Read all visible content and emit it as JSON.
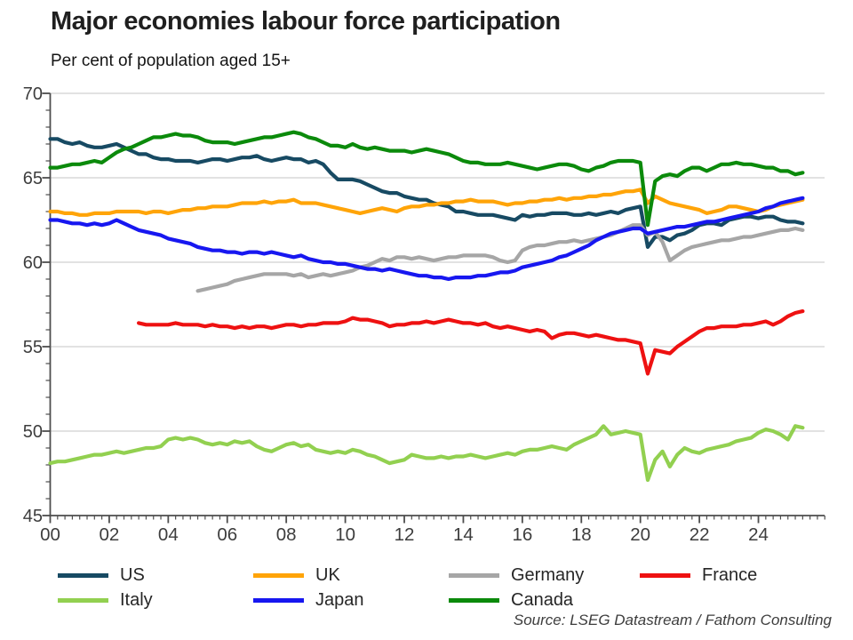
{
  "title": "Major economies labour force participation",
  "subtitle": "Per cent of population aged 15+",
  "source": "Source: LSEG Datastream / Fathom Consulting",
  "colors": {
    "background": "#ffffff",
    "gridline": "#d9d9d9",
    "axis": "#4d4d4d",
    "tick_label": "#3d3d3d",
    "title_text": "#1f1f1f"
  },
  "chart_data": {
    "type": "line",
    "title": "Major economies labour force participation",
    "subtitle": "Per cent of population aged 15+",
    "source": "Source: LSEG Datastream / Fathom Consulting",
    "grid": "horizontal",
    "legend_position": "bottom",
    "ylim": [
      45,
      70
    ],
    "y_ticks": [
      45,
      50,
      55,
      60,
      65,
      70
    ],
    "x_axis_years": [
      2000,
      2026.3
    ],
    "x_major_tick_step_years": 2,
    "x_minor_tick_step_years": 0.25,
    "x_tick_labels": [
      "00",
      "02",
      "04",
      "06",
      "08",
      "10",
      "12",
      "14",
      "16",
      "18",
      "20",
      "22",
      "24"
    ],
    "x_step": 0.25,
    "legend_rows": [
      [
        "US",
        "UK",
        "Germany",
        "France"
      ],
      [
        "Italy",
        "Japan",
        "Canada"
      ]
    ],
    "series": [
      {
        "name": "US",
        "color": "#174a63",
        "x_start": 2000,
        "values": [
          67.3,
          67.3,
          67.1,
          67.0,
          67.1,
          66.9,
          66.8,
          66.8,
          66.9,
          67.0,
          66.8,
          66.6,
          66.4,
          66.4,
          66.2,
          66.1,
          66.1,
          66.0,
          66.0,
          66.0,
          65.9,
          66.0,
          66.1,
          66.1,
          66.0,
          66.1,
          66.2,
          66.2,
          66.3,
          66.1,
          66.0,
          66.1,
          66.2,
          66.1,
          66.1,
          65.9,
          66.0,
          65.8,
          65.3,
          64.9,
          64.9,
          64.9,
          64.8,
          64.6,
          64.4,
          64.2,
          64.1,
          64.1,
          63.9,
          63.8,
          63.7,
          63.7,
          63.5,
          63.4,
          63.3,
          63.0,
          63.0,
          62.9,
          62.8,
          62.8,
          62.8,
          62.7,
          62.6,
          62.5,
          62.8,
          62.7,
          62.8,
          62.8,
          62.9,
          62.9,
          62.9,
          62.8,
          62.8,
          62.9,
          62.8,
          62.9,
          63.0,
          62.9,
          63.1,
          63.2,
          63.3,
          60.9,
          61.5,
          61.5,
          61.3,
          61.6,
          61.7,
          61.9,
          62.2,
          62.3,
          62.3,
          62.2,
          62.5,
          62.6,
          62.7,
          62.7,
          62.6,
          62.7,
          62.7,
          62.5,
          62.4,
          62.4,
          62.3
        ]
      },
      {
        "name": "UK",
        "color": "#ffa408",
        "x_start": 2000,
        "values": [
          63.0,
          63.0,
          62.9,
          62.9,
          62.8,
          62.8,
          62.9,
          62.9,
          62.9,
          63.0,
          63.0,
          63.0,
          63.0,
          62.9,
          63.0,
          63.0,
          62.9,
          63.0,
          63.1,
          63.1,
          63.2,
          63.2,
          63.3,
          63.3,
          63.3,
          63.4,
          63.5,
          63.5,
          63.5,
          63.6,
          63.5,
          63.6,
          63.6,
          63.7,
          63.5,
          63.5,
          63.5,
          63.4,
          63.3,
          63.2,
          63.1,
          63.0,
          62.9,
          63.0,
          63.1,
          63.2,
          63.1,
          63.0,
          63.2,
          63.3,
          63.3,
          63.4,
          63.4,
          63.5,
          63.5,
          63.6,
          63.6,
          63.7,
          63.6,
          63.6,
          63.6,
          63.5,
          63.4,
          63.5,
          63.5,
          63.6,
          63.6,
          63.7,
          63.7,
          63.8,
          63.7,
          63.8,
          63.8,
          63.9,
          63.9,
          64.0,
          64.0,
          64.1,
          64.2,
          64.2,
          64.3,
          63.5,
          63.9,
          63.7,
          63.5,
          63.4,
          63.3,
          63.2,
          63.1,
          62.9,
          63.0,
          63.1,
          63.3,
          63.3,
          63.2,
          63.1,
          63.0,
          63.1,
          63.3,
          63.4,
          63.5,
          63.6,
          63.7
        ]
      },
      {
        "name": "Germany",
        "color": "#a6a6a6",
        "x_start": 2005,
        "values": [
          58.3,
          58.4,
          58.5,
          58.6,
          58.7,
          58.9,
          59.0,
          59.1,
          59.2,
          59.3,
          59.3,
          59.3,
          59.3,
          59.2,
          59.3,
          59.1,
          59.2,
          59.3,
          59.2,
          59.3,
          59.4,
          59.5,
          59.7,
          59.8,
          60.0,
          60.2,
          60.1,
          60.3,
          60.3,
          60.2,
          60.3,
          60.2,
          60.1,
          60.2,
          60.3,
          60.3,
          60.4,
          60.4,
          60.4,
          60.4,
          60.3,
          60.1,
          60.0,
          60.1,
          60.7,
          60.9,
          61.0,
          61.0,
          61.1,
          61.2,
          61.2,
          61.3,
          61.2,
          61.3,
          61.4,
          61.5,
          61.6,
          61.8,
          62.0,
          62.2,
          62.2,
          61.6,
          61.8,
          61.2,
          60.1,
          60.4,
          60.7,
          60.9,
          61.0,
          61.1,
          61.2,
          61.3,
          61.3,
          61.4,
          61.5,
          61.5,
          61.6,
          61.7,
          61.8,
          61.9,
          61.9,
          62.0,
          61.9
        ]
      },
      {
        "name": "France",
        "color": "#ee1111",
        "x_start": 2003,
        "values": [
          56.4,
          56.3,
          56.3,
          56.3,
          56.3,
          56.4,
          56.3,
          56.3,
          56.3,
          56.2,
          56.3,
          56.2,
          56.2,
          56.1,
          56.2,
          56.1,
          56.2,
          56.2,
          56.1,
          56.2,
          56.3,
          56.3,
          56.2,
          56.3,
          56.3,
          56.4,
          56.4,
          56.4,
          56.5,
          56.7,
          56.6,
          56.6,
          56.5,
          56.4,
          56.2,
          56.3,
          56.3,
          56.4,
          56.4,
          56.5,
          56.4,
          56.5,
          56.6,
          56.5,
          56.4,
          56.4,
          56.3,
          56.4,
          56.2,
          56.1,
          56.2,
          56.1,
          56.0,
          55.9,
          56.0,
          55.9,
          55.5,
          55.7,
          55.8,
          55.8,
          55.7,
          55.6,
          55.7,
          55.6,
          55.5,
          55.4,
          55.4,
          55.3,
          55.2,
          53.4,
          54.8,
          54.7,
          54.6,
          55.0,
          55.3,
          55.6,
          55.9,
          56.1,
          56.1,
          56.2,
          56.2,
          56.2,
          56.3,
          56.3,
          56.4,
          56.5,
          56.3,
          56.5,
          56.8,
          57.0,
          57.1
        ]
      },
      {
        "name": "Italy",
        "color": "#92d050",
        "x_start": 2000,
        "values": [
          48.1,
          48.2,
          48.2,
          48.3,
          48.4,
          48.5,
          48.6,
          48.6,
          48.7,
          48.8,
          48.7,
          48.8,
          48.9,
          49.0,
          49.0,
          49.1,
          49.5,
          49.6,
          49.5,
          49.6,
          49.5,
          49.3,
          49.2,
          49.3,
          49.2,
          49.4,
          49.3,
          49.4,
          49.1,
          48.9,
          48.8,
          49.0,
          49.2,
          49.3,
          49.1,
          49.2,
          48.9,
          48.8,
          48.7,
          48.8,
          48.7,
          48.9,
          48.8,
          48.6,
          48.5,
          48.3,
          48.1,
          48.2,
          48.3,
          48.6,
          48.5,
          48.4,
          48.4,
          48.5,
          48.4,
          48.5,
          48.5,
          48.6,
          48.5,
          48.4,
          48.5,
          48.6,
          48.7,
          48.6,
          48.8,
          48.9,
          48.9,
          49.0,
          49.1,
          49.0,
          48.9,
          49.2,
          49.4,
          49.6,
          49.8,
          50.3,
          49.8,
          49.9,
          50.0,
          49.9,
          49.8,
          47.1,
          48.3,
          48.8,
          47.9,
          48.6,
          49.0,
          48.8,
          48.7,
          48.9,
          49.0,
          49.1,
          49.2,
          49.4,
          49.5,
          49.6,
          49.9,
          50.1,
          50.0,
          49.8,
          49.5,
          50.3,
          50.2
        ]
      },
      {
        "name": "Japan",
        "color": "#1717f0",
        "x_start": 2000,
        "values": [
          62.5,
          62.5,
          62.4,
          62.3,
          62.3,
          62.2,
          62.3,
          62.2,
          62.3,
          62.5,
          62.3,
          62.1,
          61.9,
          61.8,
          61.7,
          61.6,
          61.4,
          61.3,
          61.2,
          61.1,
          60.9,
          60.8,
          60.7,
          60.7,
          60.6,
          60.6,
          60.5,
          60.6,
          60.6,
          60.5,
          60.6,
          60.5,
          60.4,
          60.3,
          60.4,
          60.2,
          60.1,
          60.0,
          60.0,
          59.9,
          59.9,
          59.8,
          59.7,
          59.6,
          59.6,
          59.5,
          59.6,
          59.5,
          59.4,
          59.3,
          59.2,
          59.2,
          59.1,
          59.1,
          59.0,
          59.1,
          59.1,
          59.1,
          59.2,
          59.2,
          59.3,
          59.4,
          59.4,
          59.5,
          59.7,
          59.8,
          59.9,
          60.0,
          60.1,
          60.3,
          60.4,
          60.6,
          60.8,
          61.0,
          61.3,
          61.5,
          61.7,
          61.8,
          61.9,
          62.0,
          62.0,
          61.7,
          61.8,
          61.9,
          62.0,
          62.1,
          62.1,
          62.2,
          62.3,
          62.4,
          62.4,
          62.5,
          62.6,
          62.7,
          62.8,
          62.9,
          63.0,
          63.2,
          63.3,
          63.5,
          63.6,
          63.7,
          63.8
        ]
      },
      {
        "name": "Canada",
        "color": "#0b8a0b",
        "x_start": 2000,
        "values": [
          65.6,
          65.6,
          65.7,
          65.8,
          65.8,
          65.9,
          66.0,
          65.9,
          66.2,
          66.5,
          66.7,
          66.8,
          67.0,
          67.2,
          67.4,
          67.4,
          67.5,
          67.6,
          67.5,
          67.5,
          67.4,
          67.2,
          67.1,
          67.1,
          67.1,
          67.0,
          67.1,
          67.2,
          67.3,
          67.4,
          67.4,
          67.5,
          67.6,
          67.7,
          67.6,
          67.4,
          67.3,
          67.1,
          66.9,
          66.9,
          66.8,
          67.0,
          66.8,
          66.7,
          66.8,
          66.7,
          66.6,
          66.6,
          66.6,
          66.5,
          66.6,
          66.7,
          66.6,
          66.5,
          66.4,
          66.2,
          66.0,
          65.9,
          65.9,
          65.8,
          65.8,
          65.8,
          65.9,
          65.8,
          65.7,
          65.6,
          65.5,
          65.6,
          65.7,
          65.8,
          65.8,
          65.7,
          65.5,
          65.4,
          65.6,
          65.7,
          65.9,
          66.0,
          66.0,
          66.0,
          65.9,
          62.2,
          64.8,
          65.1,
          65.2,
          65.1,
          65.4,
          65.6,
          65.6,
          65.4,
          65.6,
          65.8,
          65.8,
          65.9,
          65.8,
          65.8,
          65.7,
          65.6,
          65.6,
          65.4,
          65.4,
          65.2,
          65.3
        ]
      }
    ]
  }
}
